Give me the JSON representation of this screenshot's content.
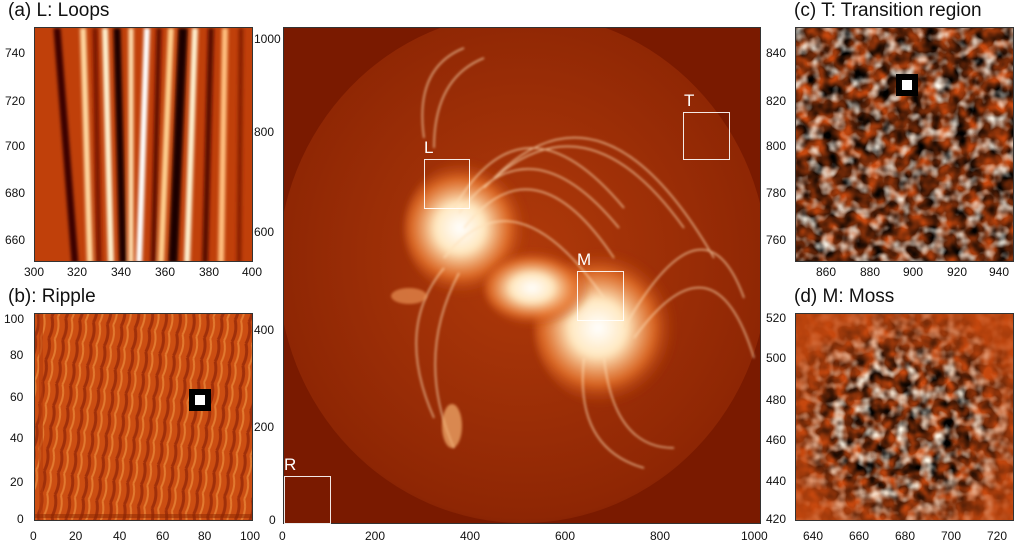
{
  "panels": {
    "a": {
      "title": "(a) L: Loops",
      "y_ticks": [
        "740",
        "720",
        "700",
        "680",
        "660"
      ],
      "x_ticks": [
        "300",
        "320",
        "340",
        "360",
        "380",
        "400"
      ]
    },
    "b": {
      "title": "(b): Ripple",
      "y_ticks": [
        "100",
        "80",
        "60",
        "40",
        "20",
        "0"
      ],
      "x_ticks": [
        "0",
        "20",
        "40",
        "60",
        "80",
        "100"
      ]
    },
    "c": {
      "title": "(c) T: Transition region",
      "y_ticks": [
        "840",
        "820",
        "800",
        "780",
        "760"
      ],
      "x_ticks": [
        "860",
        "880",
        "900",
        "920",
        "940"
      ]
    },
    "d": {
      "title": "(d) M: Moss",
      "y_ticks": [
        "520",
        "500",
        "480",
        "460",
        "440",
        "420"
      ],
      "x_ticks": [
        "640",
        "660",
        "680",
        "700",
        "720"
      ]
    },
    "main": {
      "y_ticks": [
        "1000",
        "800",
        "600",
        "400",
        "200",
        "0"
      ],
      "x_ticks": [
        "0",
        "200",
        "400",
        "600",
        "800",
        "1000"
      ],
      "boxes": {
        "L": "L",
        "T": "T",
        "M": "M",
        "R": "R"
      }
    }
  },
  "colors": {
    "background": "#7a1a00",
    "bright": "#ffffff",
    "mid": "#e05a10"
  }
}
